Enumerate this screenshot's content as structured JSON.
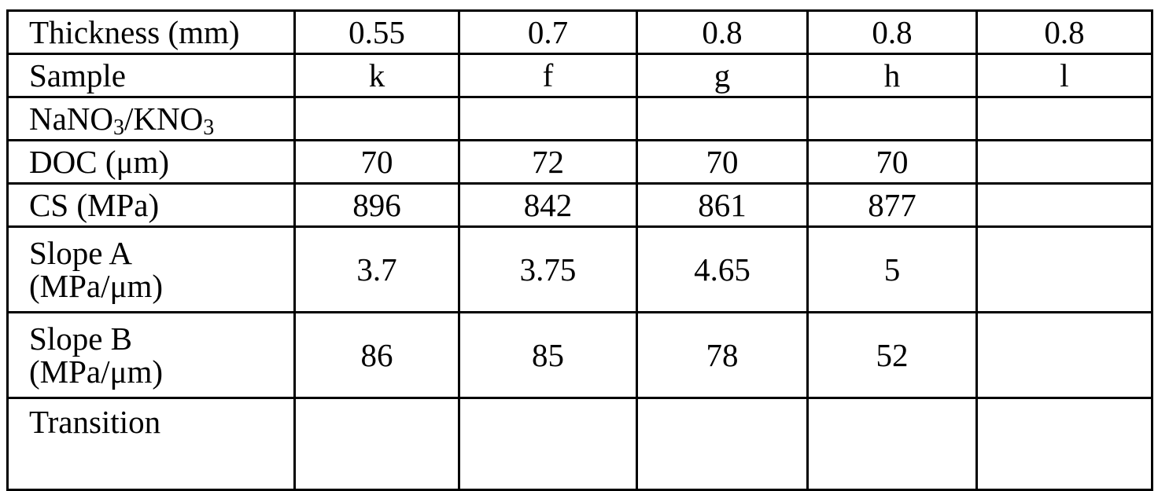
{
  "table": {
    "rows": [
      {
        "label": "Thickness (mm)",
        "values": [
          "0.55",
          "0.7",
          "0.8",
          "0.8",
          "0.8"
        ]
      },
      {
        "label": "Sample",
        "values": [
          "k",
          "f",
          "g",
          "h",
          "l"
        ]
      },
      {
        "label_parts": [
          "NaNO",
          "3",
          "/KNO",
          "3"
        ],
        "values": [
          "",
          "",
          "",
          "",
          ""
        ]
      },
      {
        "label": "DOC (μm)",
        "values": [
          "70",
          "72",
          "70",
          "70",
          ""
        ]
      },
      {
        "label": "CS (MPa)",
        "values": [
          "896",
          "842",
          "861",
          "877",
          ""
        ]
      },
      {
        "label_lines": [
          "Slope A",
          "(MPa/μm)"
        ],
        "values": [
          "3.7",
          "3.75",
          "4.65",
          "5",
          ""
        ]
      },
      {
        "label_lines": [
          "Slope B",
          "(MPa/μm)"
        ],
        "values": [
          "86",
          "85",
          "78",
          "52",
          ""
        ]
      },
      {
        "label": "Transition",
        "values": [
          "",
          "",
          "",
          "",
          ""
        ]
      }
    ]
  }
}
